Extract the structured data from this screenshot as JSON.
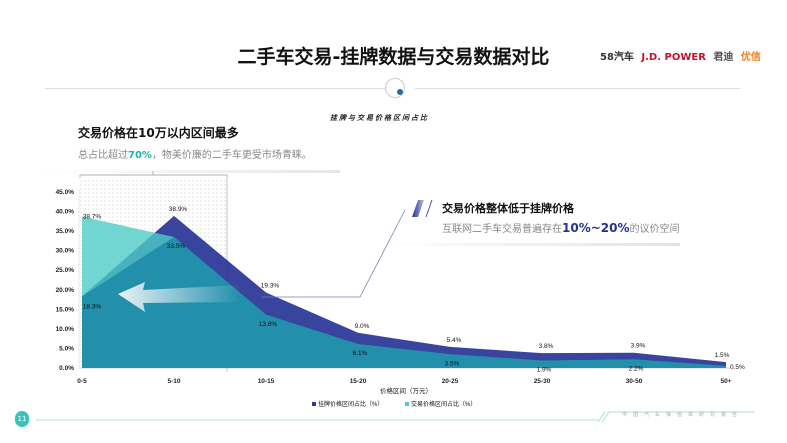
{
  "header": {
    "title": "二手车交易-挂牌数据与交易数据对比",
    "logos": [
      "58汽车",
      "J.D. POWER",
      "君迪",
      "优信"
    ]
  },
  "callout_left": {
    "headline": "交易价格在10万以内区间最多",
    "subtext_prefix": "总占比超过",
    "subtext_highlight": "70%",
    "subtext_suffix": "，物美价廉的二手车更受市场青睐。"
  },
  "callout_right": {
    "headline": "交易价格整体低于挂牌价格",
    "subtext_prefix": "互联网二手车交易普遍存在",
    "subtext_highlight": "10%~20%",
    "subtext_suffix": "的议价空间"
  },
  "footer": {
    "page": "11",
    "text": "中国汽车保值率研究报告"
  },
  "colors": {
    "listing": "#2e3a9a",
    "transaction": "#4ecdc4",
    "overlap": "#1b8aa8",
    "accent": "#1bb3a6"
  },
  "chart_data": {
    "type": "area",
    "title": "挂牌与交易价格区间占比",
    "xlabel": "价格区间（万元）",
    "ylabel": "",
    "categories": [
      "0-5",
      "5-10",
      "10-15",
      "15-20",
      "20-25",
      "25-30",
      "30-50",
      "50+"
    ],
    "ylim": [
      0,
      45
    ],
    "yticks": [
      "0.0%",
      "5.0%",
      "10.0%",
      "15.0%",
      "20.0%",
      "25.0%",
      "30.0%",
      "35.0%",
      "40.0%",
      "45.0%"
    ],
    "legend_position": "bottom",
    "series": [
      {
        "name": "挂牌价格区间占比（%）",
        "values": [
          18.3,
          38.9,
          19.3,
          9.0,
          5.4,
          3.8,
          3.9,
          1.5
        ],
        "labels": [
          "18.3%",
          "38.9%",
          "19.3%",
          "9.0%",
          "5.4%",
          "3.8%",
          "3.9%",
          "1.5%"
        ]
      },
      {
        "name": "交易价格区间占比（%）",
        "values": [
          38.7,
          33.5,
          13.6,
          6.1,
          3.5,
          1.9,
          2.2,
          0.5
        ],
        "labels": [
          "38.7%",
          "33.5%",
          "13.6%",
          "6.1%",
          "3.5%",
          "1.9%",
          "2.2%",
          "0.5%"
        ]
      }
    ]
  }
}
